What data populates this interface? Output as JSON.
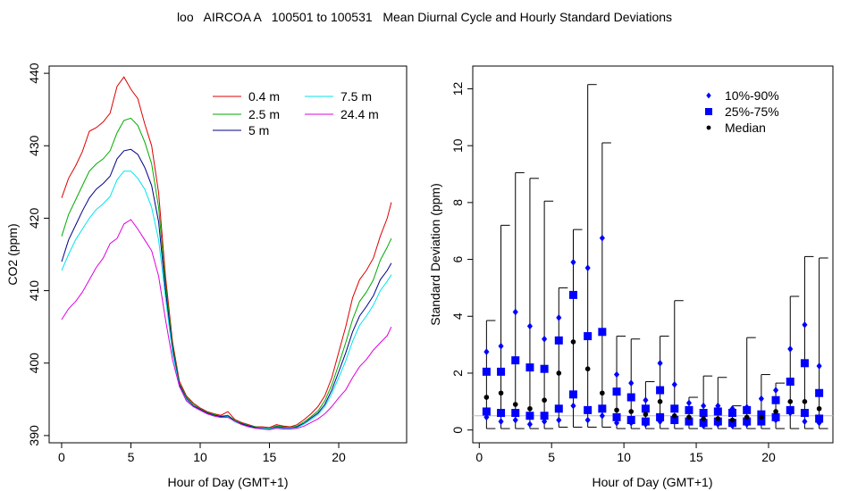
{
  "page": {
    "title": "loo   AIRCOA A   100501 to 100531   Mean Diurnal Cycle and Hourly Standard Deviations"
  },
  "chart_data": [
    {
      "type": "line",
      "title": "",
      "xlabel": "Hour of Day (GMT+1)",
      "ylabel": "CO2 (ppm)",
      "xlim": [
        -0.9,
        24.9
      ],
      "ylim": [
        389,
        441
      ],
      "xticks": [
        0,
        5,
        10,
        15,
        20
      ],
      "yticks": [
        390,
        400,
        410,
        420,
        430,
        440
      ],
      "grid": false,
      "legend": "top-right",
      "x": [
        0,
        0.5,
        1,
        1.5,
        2,
        2.5,
        3,
        3.5,
        4,
        4.5,
        5,
        5.5,
        6,
        6.5,
        7,
        7.5,
        8,
        8.5,
        9,
        9.5,
        10,
        10.5,
        11,
        11.5,
        12,
        12.5,
        13,
        13.5,
        14,
        14.5,
        15,
        15.5,
        16,
        16.5,
        17,
        17.5,
        18,
        18.5,
        19,
        19.5,
        20,
        20.5,
        21,
        21.5,
        22,
        22.5,
        23,
        23.5,
        23.8
      ],
      "series": [
        {
          "name": "0.4 m",
          "color": "#dd0000",
          "values": [
            422.8,
            425.5,
            427.2,
            429.2,
            432.0,
            432.5,
            433.3,
            434.5,
            438.2,
            439.5,
            437.8,
            436.5,
            433.0,
            430.0,
            423.5,
            412.0,
            403.0,
            397.5,
            395.5,
            394.5,
            393.8,
            393.3,
            393.0,
            392.8,
            393.3,
            392.2,
            391.8,
            391.5,
            391.2,
            391.2,
            391.1,
            391.5,
            391.3,
            391.2,
            391.5,
            392.2,
            393.0,
            394.0,
            395.5,
            398.0,
            401.5,
            405.0,
            409.0,
            411.5,
            412.8,
            414.5,
            417.5,
            420.0,
            422.2
          ]
        },
        {
          "name": "2.5 m",
          "color": "#00aa00",
          "values": [
            417.5,
            420.5,
            422.5,
            424.5,
            426.5,
            427.5,
            428.2,
            429.3,
            431.8,
            433.5,
            433.8,
            432.8,
            430.5,
            427.5,
            421.5,
            411.0,
            402.5,
            397.2,
            395.3,
            394.3,
            393.7,
            393.2,
            392.9,
            392.7,
            392.8,
            392.1,
            391.7,
            391.4,
            391.2,
            391.1,
            391.0,
            391.3,
            391.2,
            391.1,
            391.3,
            391.9,
            392.6,
            393.4,
            394.8,
            397.0,
            399.8,
            402.8,
            406.0,
            408.5,
            409.8,
            411.5,
            414.2,
            416.0,
            417.2
          ]
        },
        {
          "name": "5 m",
          "color": "#000088",
          "values": [
            414.0,
            417.0,
            419.0,
            421.0,
            422.8,
            424.0,
            424.8,
            425.8,
            428.2,
            429.3,
            429.5,
            428.8,
            427.0,
            424.5,
            419.5,
            410.0,
            402.0,
            397.0,
            395.1,
            394.1,
            393.6,
            393.1,
            392.8,
            392.6,
            392.7,
            392.0,
            391.6,
            391.3,
            391.1,
            391.0,
            390.9,
            391.2,
            391.1,
            391.0,
            391.2,
            391.7,
            392.4,
            393.1,
            394.3,
            396.3,
            398.8,
            401.4,
            404.3,
            406.5,
            407.8,
            409.3,
            411.5,
            412.8,
            413.8
          ]
        },
        {
          "name": "7.5 m",
          "color": "#00e5ee",
          "values": [
            412.8,
            415.0,
            417.0,
            418.5,
            420.0,
            421.2,
            422.0,
            423.0,
            425.3,
            426.5,
            426.5,
            425.5,
            424.0,
            421.5,
            417.0,
            409.0,
            401.5,
            396.8,
            395.0,
            394.0,
            393.5,
            393.0,
            392.7,
            392.5,
            392.6,
            391.9,
            391.5,
            391.2,
            391.0,
            391.0,
            390.9,
            391.1,
            391.0,
            391.0,
            391.1,
            391.6,
            392.2,
            392.9,
            394.0,
            395.8,
            398.0,
            400.3,
            403.0,
            405.2,
            406.5,
            408.0,
            410.0,
            411.3,
            412.2
          ]
        },
        {
          "name": "24.4 m",
          "color": "#dd00dd",
          "values": [
            406.0,
            407.5,
            408.5,
            409.8,
            411.5,
            413.2,
            414.5,
            416.5,
            417.2,
            419.2,
            419.8,
            418.5,
            417.0,
            415.5,
            412.0,
            406.0,
            400.5,
            396.8,
            394.8,
            394.0,
            393.5,
            393.0,
            392.7,
            392.5,
            392.5,
            392.0,
            391.5,
            391.2,
            391.0,
            390.9,
            390.8,
            391.0,
            390.9,
            390.9,
            391.0,
            391.3,
            391.8,
            392.3,
            393.0,
            394.0,
            395.2,
            396.3,
            398.0,
            399.5,
            400.5,
            401.8,
            402.8,
            403.8,
            405.0
          ]
        }
      ]
    },
    {
      "type": "scatter",
      "title": "",
      "xlabel": "Hour of Day (GMT+1)",
      "ylabel": "Standard Deviation (ppm)",
      "xlim": [
        -0.45,
        24.45
      ],
      "ylim": [
        -0.45,
        12.8
      ],
      "xticks": [
        0,
        5,
        10,
        15,
        20
      ],
      "yticks": [
        0,
        2,
        4,
        6,
        8,
        10,
        12
      ],
      "grid": false,
      "legend": "top-right",
      "reference_line": 0.5,
      "x": [
        0.5,
        1.5,
        2.5,
        3.5,
        4.5,
        5.5,
        6.5,
        7.5,
        8.5,
        9.5,
        10.5,
        11.5,
        12.5,
        13.5,
        14.5,
        15.5,
        16.5,
        17.5,
        18.5,
        19.5,
        20.5,
        21.5,
        22.5,
        23.5
      ],
      "whisker_low": [
        0.05,
        0.05,
        0.05,
        0.05,
        0.05,
        0.1,
        0.1,
        0.1,
        0.1,
        0.05,
        0.05,
        0.05,
        0.05,
        0.05,
        0.05,
        0.05,
        0.05,
        0.05,
        0.05,
        0.05,
        0.05,
        0.05,
        0.05,
        0.05
      ],
      "whisker_high": [
        3.85,
        7.2,
        9.05,
        8.85,
        8.05,
        5.0,
        7.05,
        12.15,
        10.1,
        3.3,
        3.2,
        1.7,
        3.3,
        4.55,
        1.15,
        1.9,
        1.85,
        0.85,
        3.25,
        1.95,
        1.65,
        4.7,
        6.1,
        6.05
      ],
      "series": [
        {
          "name": "10%-90%",
          "marker": "diamond",
          "color": "#0000ff",
          "values": [
            2.75,
            2.95,
            4.15,
            3.65,
            3.2,
            3.95,
            5.9,
            5.7,
            6.75,
            1.95,
            1.65,
            1.05,
            2.35,
            1.6,
            0.95,
            0.85,
            0.85,
            0.75,
            0.8,
            1.1,
            1.4,
            2.85,
            3.7,
            2.25
          ],
          "values_low": [
            0.45,
            0.3,
            0.35,
            0.2,
            0.3,
            0.35,
            0.85,
            0.35,
            0.5,
            0.25,
            0.25,
            0.2,
            0.3,
            0.3,
            0.25,
            0.15,
            0.2,
            0.15,
            0.2,
            0.25,
            0.35,
            0.6,
            0.3,
            0.25
          ]
        },
        {
          "name": "25%-75%",
          "marker": "square",
          "color": "#0000ff",
          "values": [
            2.05,
            2.05,
            2.45,
            2.2,
            2.15,
            3.15,
            4.75,
            3.3,
            3.45,
            1.35,
            1.15,
            0.75,
            1.4,
            0.75,
            0.7,
            0.6,
            0.65,
            0.6,
            0.7,
            0.55,
            1.05,
            1.7,
            2.35,
            1.3
          ],
          "values_low": [
            0.65,
            0.6,
            0.6,
            0.5,
            0.5,
            0.75,
            1.25,
            0.7,
            0.75,
            0.45,
            0.35,
            0.3,
            0.45,
            0.35,
            0.3,
            0.25,
            0.3,
            0.25,
            0.3,
            0.3,
            0.45,
            0.7,
            0.6,
            0.4
          ]
        },
        {
          "name": "Median",
          "marker": "circle",
          "color": "#000000",
          "values": [
            1.15,
            1.3,
            0.9,
            0.75,
            1.05,
            2.0,
            3.1,
            2.15,
            1.3,
            0.7,
            0.65,
            0.55,
            1.0,
            0.5,
            0.45,
            0.4,
            0.4,
            0.35,
            0.45,
            0.45,
            0.65,
            1.0,
            1.0,
            0.75
          ]
        }
      ]
    }
  ]
}
